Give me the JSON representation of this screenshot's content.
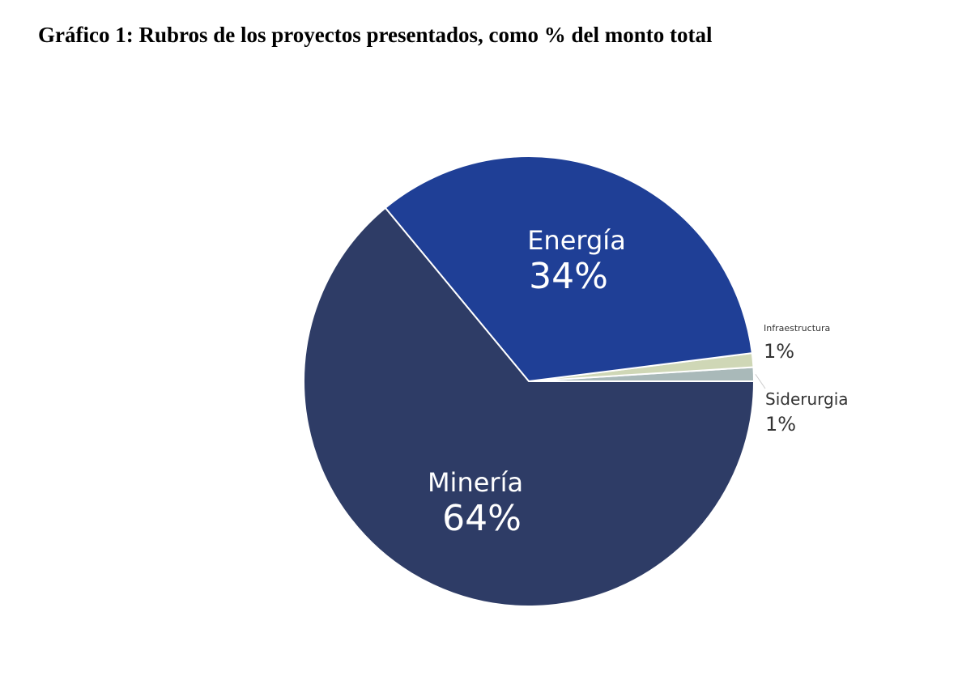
{
  "chart_data": {
    "type": "pie",
    "title": "Gráfico 1: Rubros de los proyectos presentados, como % del monto total",
    "slices": [
      {
        "label": "Siderurgia",
        "value": 1,
        "value_label": "1%",
        "color": "#a9b9b9"
      },
      {
        "label": "Infraestructura",
        "value": 1,
        "value_label": "1%",
        "color": "#cfd7b6"
      },
      {
        "label": "Energía",
        "value": 34,
        "value_label": "34%",
        "color": "#1f3f96"
      },
      {
        "label": "Minería",
        "value": 64,
        "value_label": "64%",
        "color": "#2e3c66"
      }
    ],
    "start": "3 o'clock, counterclockwise",
    "legend": "none (inline labels)"
  }
}
